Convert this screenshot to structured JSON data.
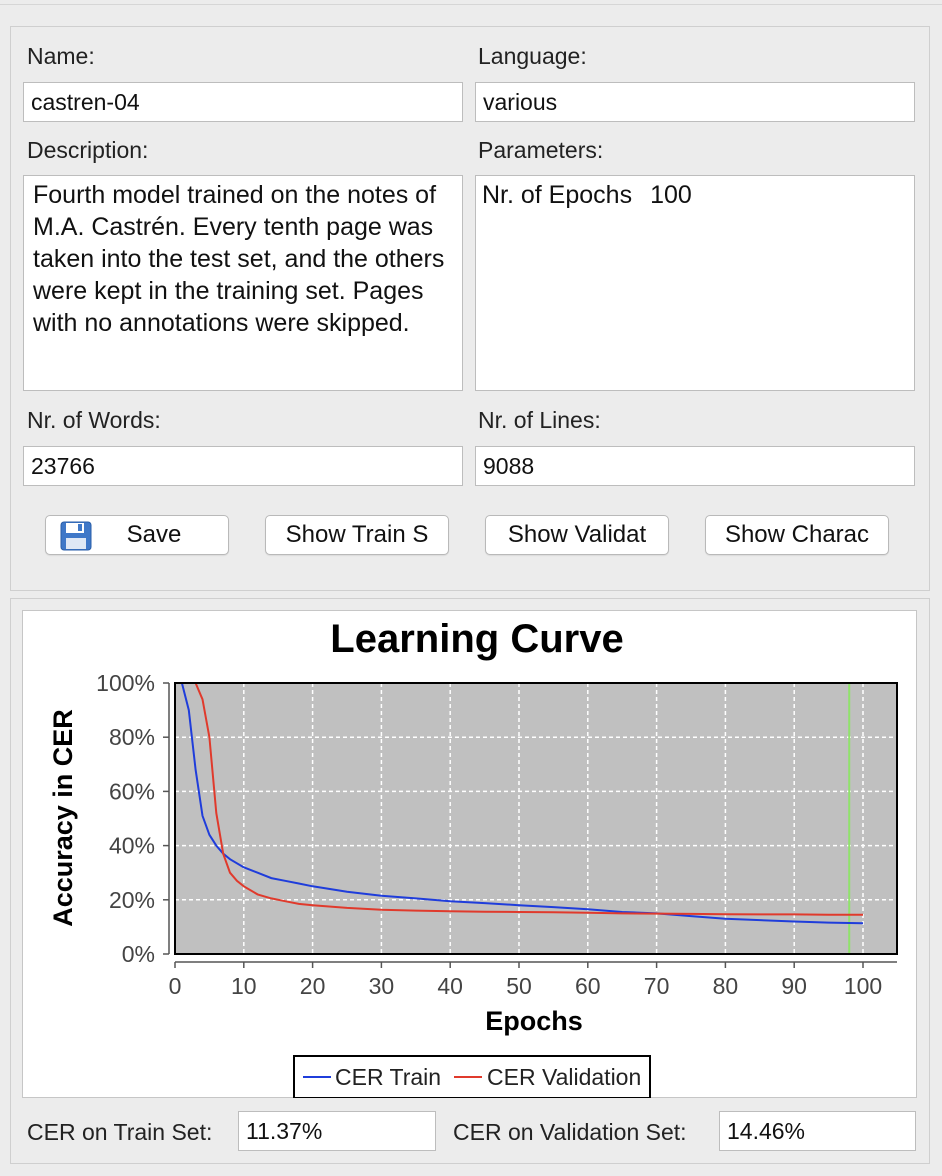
{
  "form": {
    "name_label": "Name:",
    "name_value": "castren-04",
    "language_label": "Language:",
    "language_value": "various",
    "description_label": "Description:",
    "description_value": "Fourth model trained on the notes of M.A. Castrén. Every tenth page was taken into the test set, and the others were kept in the training set. Pages with no annotations were skipped.",
    "parameters_label": "Parameters:",
    "parameters": [
      {
        "key": "Nr. of Epochs",
        "value": "100"
      }
    ],
    "words_label": "Nr. of Words:",
    "words_value": "23766",
    "lines_label": "Nr. of Lines:",
    "lines_value": "9088"
  },
  "buttons": {
    "save": "Save",
    "show_train": "Show Train S",
    "show_validation": "Show Validat",
    "show_characters": "Show Charac"
  },
  "footer": {
    "cer_train_label": "CER on Train Set:",
    "cer_train_value": "11.37%",
    "cer_validation_label": "CER on Validation Set:",
    "cer_validation_value": "14.46%"
  },
  "colors": {
    "train": "#1f3ddb",
    "validation": "#e03a2c",
    "marker": "#8fe36a",
    "plot_bg": "#c0c0c0"
  },
  "chart_data": {
    "type": "line",
    "title": "Learning Curve",
    "xlabel": "Epochs",
    "ylabel": "Accuracy in CER",
    "xlim": [
      0,
      105
    ],
    "ylim": [
      0,
      100
    ],
    "xticks": [
      0,
      10,
      20,
      30,
      40,
      50,
      60,
      70,
      80,
      90,
      100
    ],
    "yticks": [
      0,
      20,
      40,
      60,
      80,
      100
    ],
    "ytick_labels": [
      "0%",
      "20%",
      "40%",
      "60%",
      "80%",
      "100%"
    ],
    "grid": true,
    "legend_position": "bottom-center",
    "marker_epoch": 98,
    "series": [
      {
        "name": "CER Train",
        "x": [
          1,
          2,
          3,
          4,
          5,
          6,
          7,
          8,
          10,
          12,
          14,
          16,
          18,
          20,
          25,
          30,
          35,
          40,
          45,
          50,
          55,
          60,
          65,
          70,
          75,
          80,
          85,
          90,
          95,
          100
        ],
        "values": [
          100,
          90,
          68,
          51,
          44,
          40,
          37,
          35,
          32,
          30,
          28,
          27,
          26,
          25,
          23,
          21.5,
          20.5,
          19.5,
          18.8,
          18,
          17.3,
          16.5,
          15.5,
          15,
          14,
          13,
          12.5,
          12,
          11.6,
          11.37
        ]
      },
      {
        "name": "CER Validation",
        "x": [
          3,
          4,
          5,
          6,
          7,
          8,
          9,
          10,
          12,
          14,
          16,
          18,
          20,
          25,
          30,
          35,
          40,
          45,
          50,
          55,
          60,
          65,
          70,
          75,
          80,
          85,
          90,
          95,
          100
        ],
        "values": [
          100,
          94,
          80,
          52,
          37,
          30,
          27,
          25,
          22,
          20.5,
          19.5,
          18.5,
          18,
          17,
          16.3,
          16,
          15.8,
          15.6,
          15.5,
          15.4,
          15.2,
          15,
          14.9,
          14.8,
          14.7,
          14.6,
          14.6,
          14.5,
          14.46
        ]
      }
    ]
  }
}
